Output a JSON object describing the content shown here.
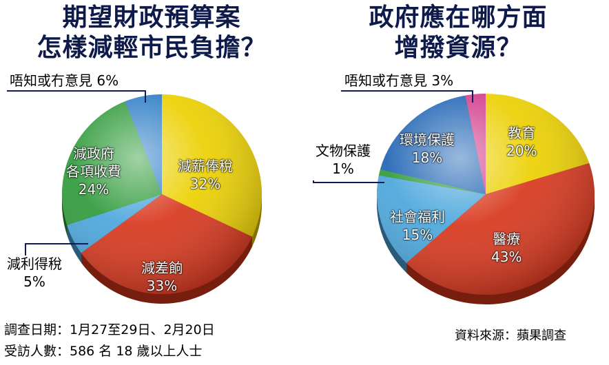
{
  "titles": {
    "left": [
      "期望財政預算案",
      "怎樣減輕市民負擔？"
    ],
    "right": [
      "政府應在哪方面",
      "增撥資源？"
    ]
  },
  "chart_data": [
    {
      "type": "pie",
      "title": "期望財政預算案怎樣減輕市民負擔？",
      "slices": [
        {
          "label": "減薪俸稅",
          "value": 32,
          "value_label": "32%",
          "color": "#ecd000"
        },
        {
          "label": "減差餉",
          "value": 33,
          "value_label": "33%",
          "color": "#d8361c"
        },
        {
          "label": "減利得稅",
          "value": 5,
          "value_label": "5%",
          "color": "#4aa6dc"
        },
        {
          "label": "減政府各項收費",
          "value": 24,
          "value_label": "24%",
          "color": "#2f9a3a"
        },
        {
          "label": "唔知或冇意見",
          "value": 6,
          "value_label": "6%",
          "color": "#2e7ec6"
        }
      ]
    },
    {
      "type": "pie",
      "title": "政府應在哪方面增撥資源？",
      "slices": [
        {
          "label": "教育",
          "value": 20,
          "value_label": "20%",
          "color": "#ecd000"
        },
        {
          "label": "醫療",
          "value": 43,
          "value_label": "43%",
          "color": "#d8361c"
        },
        {
          "label": "社會福利",
          "value": 15,
          "value_label": "15%",
          "color": "#4aa6dc"
        },
        {
          "label": "文物保護",
          "value": 1,
          "value_label": "1%",
          "color": "#2f9a3a"
        },
        {
          "label": "環境保護",
          "value": 18,
          "value_label": "18%",
          "color": "#1f64b4"
        },
        {
          "label": "唔知或冇意見",
          "value": 3,
          "value_label": "3%",
          "color": "#d23c8c"
        }
      ]
    }
  ],
  "labels": {
    "left": {
      "s0_name": "減薪俸稅",
      "s0_pct": "32%",
      "s1_name": "減差餉",
      "s1_pct": "33%",
      "s2_name": "減利得稅",
      "s2_pct": "5%",
      "s3_line1": "減政府",
      "s3_line2": "各項收費",
      "s3_pct": "24%",
      "s4_text": "唔知或冇意見  6%"
    },
    "right": {
      "s0_name": "教育",
      "s0_pct": "20%",
      "s1_name": "醫療",
      "s1_pct": "43%",
      "s2_name": "社會福利",
      "s2_pct": "15%",
      "s3_name": "文物保護",
      "s3_pct": "1%",
      "s4_name": "環境保護",
      "s4_pct": "18%",
      "s5_text": "唔知或冇意見  3%"
    }
  },
  "footer": {
    "survey_dates": "調查日期：1月27至29日、2月20日",
    "respondents": "受訪人數：586 名 18 歲以上人士",
    "source": "資料來源：蘋果調查"
  }
}
